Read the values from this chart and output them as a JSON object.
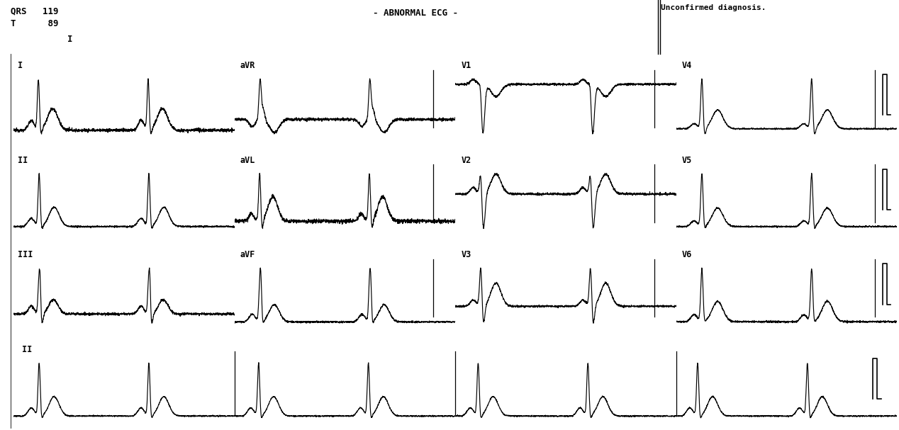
{
  "title_left_line1": "QRS   119",
  "title_left_line2": "T      89",
  "title_center": "- ABNORMAL ECG -",
  "title_right": "Unconfirmed diagnosis.",
  "bg_color": "#ffffff",
  "line_color": "#000000",
  "text_color": "#000000",
  "figsize": [
    12.68,
    6.07
  ],
  "dpi": 100,
  "beat_period": 1.54,
  "fs": 500,
  "dur_short": 3.1,
  "dur_long": 12.4
}
